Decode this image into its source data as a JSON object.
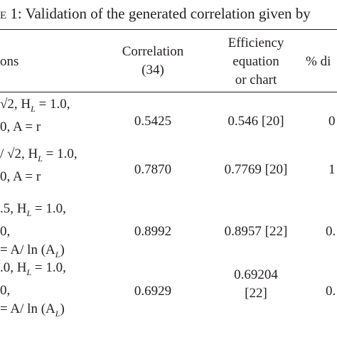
{
  "caption": {
    "prefix": "e 1",
    "text": ": Validation of the generated correlation given by"
  },
  "headers": {
    "col0": "ons",
    "col1_line1": "Correlation",
    "col1_line2": "(34)",
    "col2_line1": "Efficiency",
    "col2_line2": "equation",
    "col2_line3": "or chart",
    "col3": "% di"
  },
  "rows": [
    {
      "cond_line1": "√2, H",
      "cond_line1_sub": "L",
      "cond_line1_tail": " = 1.0,",
      "cond_line2": "0, A = r",
      "correlation": "0.5425",
      "efficiency": "0.546 [20]",
      "efficiency_line2": "",
      "diff": "0"
    },
    {
      "cond_line1": "/ √2, H",
      "cond_line1_sub": "L",
      "cond_line1_tail": " = 1.0,",
      "cond_line2": "0, A = r",
      "correlation": "0.7870",
      "efficiency": "0.7769 [20]",
      "efficiency_line2": "",
      "diff": "1"
    },
    {
      "cond_line1": ".5, H",
      "cond_line1_sub": "L",
      "cond_line1_tail": " = 1.0,",
      "cond_line2": "0,",
      "cond_line3": "= A/ ln (A",
      "cond_line3_sub": "L",
      "cond_line3_tail": ")",
      "correlation": "0.8992",
      "efficiency": "0.8957 [22]",
      "efficiency_line2": "",
      "diff": "0."
    },
    {
      "cond_line1": ".0, H",
      "cond_line1_sub": "L",
      "cond_line1_tail": " = 1.0,",
      "cond_line2": "0,",
      "cond_line3": "= A/ ln (A",
      "cond_line3_sub": "L",
      "cond_line3_tail": ")",
      "correlation": "0.6929",
      "efficiency": "0.69204",
      "efficiency_line2": "[22]",
      "diff": "0."
    }
  ]
}
